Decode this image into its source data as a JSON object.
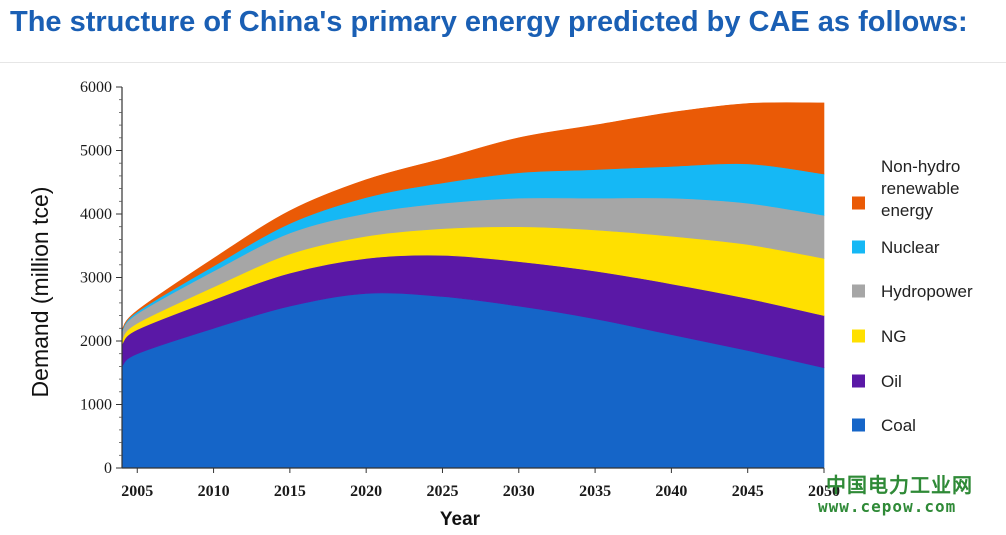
{
  "page": {
    "title": "The structure of China's primary energy predicted by CAE as follows:"
  },
  "watermark": {
    "line1": "中国电力工业网",
    "line2": "www.cepow.com",
    "color": "#2f8a37"
  },
  "chart_data": {
    "type": "area",
    "stacked": true,
    "title": "",
    "xlabel": "Year",
    "ylabel": "Demand (million tce)",
    "x": [
      2004,
      2005,
      2010,
      2015,
      2020,
      2025,
      2030,
      2035,
      2040,
      2045,
      2050
    ],
    "x_ticks": [
      2005,
      2010,
      2015,
      2020,
      2025,
      2030,
      2035,
      2040,
      2045,
      2050
    ],
    "y_ticks": [
      0,
      1000,
      2000,
      3000,
      4000,
      5000,
      6000
    ],
    "xlim": [
      2004,
      2050
    ],
    "ylim": [
      0,
      6000
    ],
    "grid": false,
    "legend_position": "right",
    "series": [
      {
        "name": "Coal",
        "color": "#1565c8",
        "values": [
          1600,
          1800,
          2200,
          2550,
          2750,
          2700,
          2550,
          2350,
          2100,
          1850,
          1580
        ]
      },
      {
        "name": "Oil",
        "color": "#5a18a6",
        "values": [
          350,
          380,
          450,
          520,
          550,
          650,
          700,
          750,
          800,
          820,
          820
        ]
      },
      {
        "name": "NG",
        "color": "#ffe000",
        "values": [
          80,
          100,
          200,
          300,
          350,
          420,
          550,
          650,
          750,
          850,
          900
        ]
      },
      {
        "name": "Hydropower",
        "color": "#a6a6a6",
        "values": [
          120,
          150,
          250,
          330,
          360,
          400,
          450,
          500,
          600,
          650,
          680
        ]
      },
      {
        "name": "Nuclear",
        "color": "#15b8f5",
        "values": [
          20,
          30,
          80,
          150,
          250,
          320,
          400,
          450,
          500,
          620,
          650
        ]
      },
      {
        "name": "Non-hydro renewable energy",
        "color": "#ea5a06",
        "values": [
          10,
          20,
          120,
          200,
          280,
          380,
          550,
          700,
          850,
          950,
          1120
        ]
      }
    ]
  }
}
